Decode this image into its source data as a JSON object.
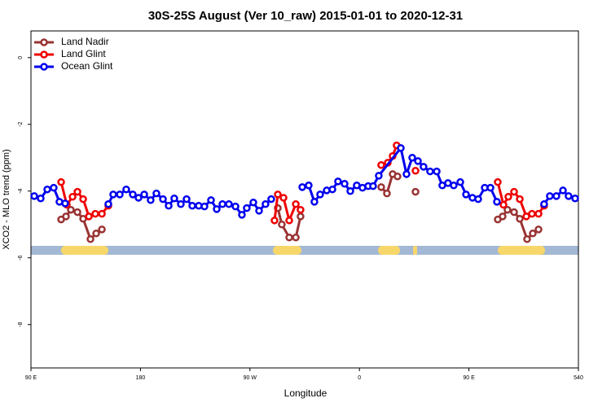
{
  "chart_data": {
    "type": "line",
    "title": "30S-25S August (Ver 10_raw)   2015-01-01 to 2020-12-31",
    "x_label": "Longitude",
    "y_label": "XCO2 - MLO trend (ppm)",
    "xlim": [
      90,
      540
    ],
    "xticks": [
      {
        "value": 90,
        "label": "90 E"
      },
      180,
      {
        "value": 270,
        "label": "90 W"
      },
      {
        "value": 360,
        "label": "0"
      },
      {
        "value": 450,
        "label": "90 E"
      },
      540
    ],
    "ylim": [
      -9.3,
      0.8
    ],
    "yticks": [
      0,
      -2,
      -4,
      -6,
      -8
    ],
    "legend": "top-left",
    "series": [
      {
        "name": "Land Nadir",
        "color": "#993333",
        "x": [
          114.8,
          118.8,
          122.8,
          128.2,
          132.9,
          138.9,
          143.6,
          148.3,
          null,
          292.9,
          296.2,
          302.3,
          307.7,
          311.6,
          null,
          377.9,
          382.6,
          387.3,
          391.3,
          null,
          406.1,
          null,
          473.7,
          477.7,
          481.7,
          487.1,
          491.8,
          497.8,
          502.5,
          507.2
        ],
        "values": [
          -4.85,
          -4.76,
          -4.56,
          -4.63,
          -4.83,
          -5.44,
          -5.27,
          -5.15,
          null,
          -4.51,
          -5.0,
          -5.39,
          -5.39,
          -4.76,
          null,
          -3.88,
          -4.07,
          -3.49,
          -3.56,
          null,
          -4.02,
          null,
          -4.85,
          -4.76,
          -4.56,
          -4.63,
          -4.83,
          -5.44,
          -5.27,
          -5.15
        ]
      },
      {
        "name": "Land Glint",
        "color": "#ee0000",
        "x": [
          114.8,
          119.5,
          124.2,
          128.2,
          132.9,
          137.6,
          142.9,
          148.3,
          153.6,
          null,
          290.2,
          292.9,
          297.6,
          302.3,
          307.7,
          311.6,
          null,
          377.9,
          383.3,
          387.3,
          390.6,
          null,
          406.1,
          null,
          473.7,
          478.4,
          482.4,
          487.1,
          491.8,
          497.2,
          501.8,
          507.2,
          511.8
        ],
        "values": [
          -3.73,
          -4.41,
          -4.17,
          -4.02,
          -4.24,
          -4.76,
          -4.68,
          -4.68,
          -4.44,
          null,
          -4.88,
          -4.1,
          -4.2,
          -4.88,
          -4.39,
          -4.56,
          null,
          -3.22,
          -3.15,
          -2.95,
          -2.63,
          null,
          -3.39,
          null,
          -3.73,
          -4.41,
          -4.17,
          -4.02,
          -4.24,
          -4.76,
          -4.68,
          -4.68,
          -4.44
        ]
      },
      {
        "name": "Ocean Glint",
        "color": "#0000ee",
        "x": [
          92.7,
          98,
          103.4,
          108.7,
          113.4,
          118.1,
          null,
          153.6,
          157.6,
          163,
          168.3,
          173.7,
          178.4,
          183.1,
          188.4,
          193.1,
          198.5,
          203.2,
          207.8,
          213.2,
          217.9,
          222.6,
          227.9,
          232.6,
          238,
          242.7,
          247.4,
          252.7,
          258.1,
          263.4,
          267.4,
          272.8,
          277.5,
          282.8,
          287.5,
          null,
          313,
          318.3,
          323,
          327.7,
          333.1,
          337.8,
          342.4,
          347.8,
          352.5,
          357.8,
          362.5,
          367.2,
          371.2,
          375.9,
          394,
          398.7,
          403.4,
          408.1,
          412.7,
          418.1,
          423.5,
          428.1,
          432.8,
          437.5,
          442.9,
          447.6,
          452.9,
          457.6,
          463,
          467.7,
          473,
          null,
          511.8,
          516.5,
          521.9,
          527.3,
          531.9,
          537.3
        ],
        "values": [
          -4.15,
          -4.22,
          -3.95,
          -3.9,
          -4.32,
          -4.37,
          null,
          -4.39,
          -4.1,
          -4.1,
          -3.95,
          -4.1,
          -4.2,
          -4.1,
          -4.27,
          -4.07,
          -4.24,
          -4.44,
          -4.22,
          -4.39,
          -4.24,
          -4.44,
          -4.44,
          -4.46,
          -4.27,
          -4.54,
          -4.39,
          -4.39,
          -4.46,
          -4.71,
          -4.51,
          -4.34,
          -4.59,
          -4.39,
          -4.24,
          null,
          -3.88,
          -3.83,
          -4.32,
          -4.1,
          -3.98,
          -3.95,
          -3.71,
          -3.78,
          -4.0,
          -3.83,
          -3.9,
          -3.85,
          -3.85,
          -3.54,
          -2.71,
          -3.49,
          -3.0,
          -3.1,
          -3.27,
          -3.41,
          -3.41,
          -3.83,
          -3.76,
          -3.83,
          -3.73,
          -4.1,
          -4.2,
          -4.24,
          -3.9,
          -3.9,
          -4.32,
          null,
          -4.39,
          -4.15,
          -4.15,
          -3.98,
          -4.15,
          -4.22
        ]
      }
    ]
  }
}
